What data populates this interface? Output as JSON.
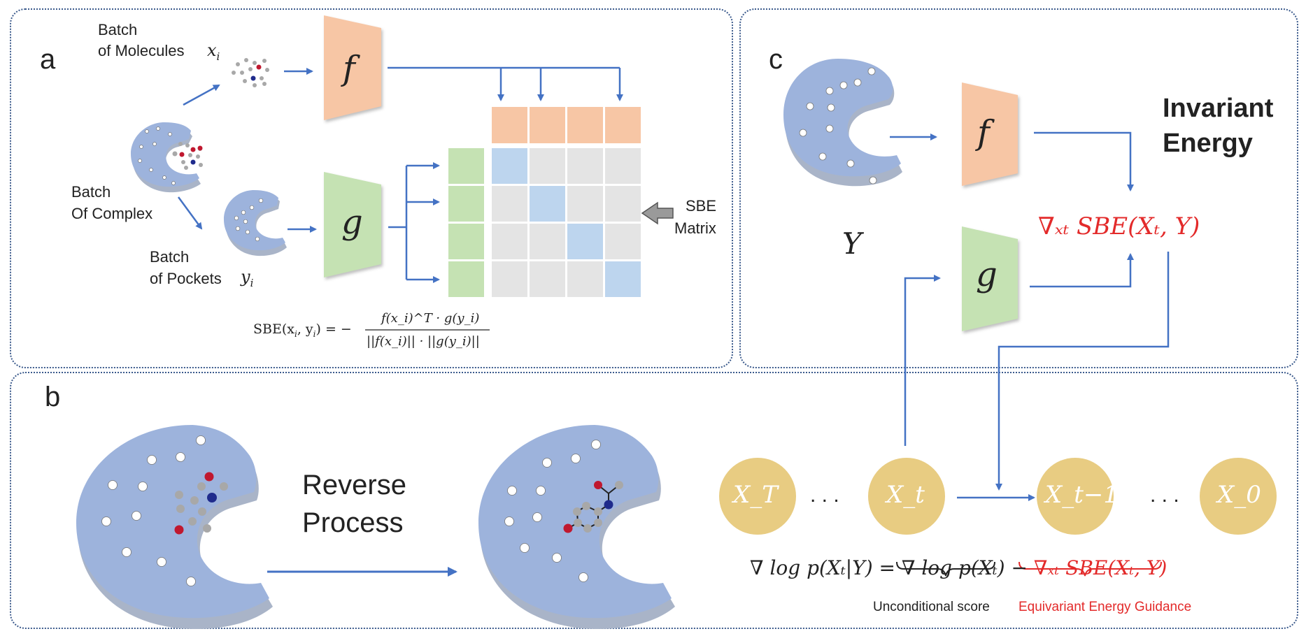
{
  "panels": {
    "a": {
      "letter": "a"
    },
    "b": {
      "letter": "b"
    },
    "c": {
      "letter": "c"
    }
  },
  "panel_a": {
    "batch_molecules": [
      "Batch",
      "of Molecules"
    ],
    "molecules_var": "x",
    "molecules_sub": "i",
    "batch_complex": [
      "Batch",
      "Of Complex"
    ],
    "batch_pockets": [
      "Batch",
      "of Pockets"
    ],
    "pockets_var": "y",
    "pockets_sub": "i",
    "f_label": "f",
    "g_label": "g",
    "sbe_matrix": [
      "SBE",
      "Matrix"
    ],
    "formula": {
      "lhs": "SBE(x",
      "lhs_sub1": "i",
      "lhs_mid": ", y",
      "lhs_sub2": "i",
      "lhs_end": ") = −",
      "numerator": "f(x_i)^T · g(y_i)",
      "denominator": "||f(x_i)|| · ||g(y_i)||"
    }
  },
  "panel_b": {
    "reverse_process": [
      "Reverse",
      "Process"
    ]
  },
  "panel_c": {
    "f_label": "f",
    "g_label": "g",
    "y_label": "Y",
    "title": [
      "Invariant",
      "Energy"
    ],
    "grad_sbe": "∇ₓₜ SBE(Xₜ, Y)"
  },
  "chain": {
    "nodes": [
      "X_T",
      "X_t",
      "X_t−1",
      "X_0"
    ],
    "dots": ". . .",
    "equation": {
      "lhs": "∇ log p(Xₜ|Y) = ",
      "term1": "∇ log p(Xₜ)",
      "minus": " − ",
      "term2": "∇ₓₜ SBE(Xₜ, Y)"
    },
    "unconditional_score": "Unconditional score",
    "equivariant_guidance": "Equivariant Energy Guidance"
  },
  "colors": {
    "arrow": "#4472c4",
    "pocket": "#9db3dc",
    "pocket_shadow": "#a9b4c8",
    "f_block": "#f7c6a5",
    "g_block": "#c5e2b3",
    "matrix_cell": "#e4e4e4",
    "matrix_diag": "#bdd5ee",
    "node_fill": "#e8cc82",
    "highlight_red": "#e32a2a",
    "atom_red": "#c0182f",
    "atom_blue": "#1f2b8c",
    "atom_gray": "#a8a8a8"
  }
}
